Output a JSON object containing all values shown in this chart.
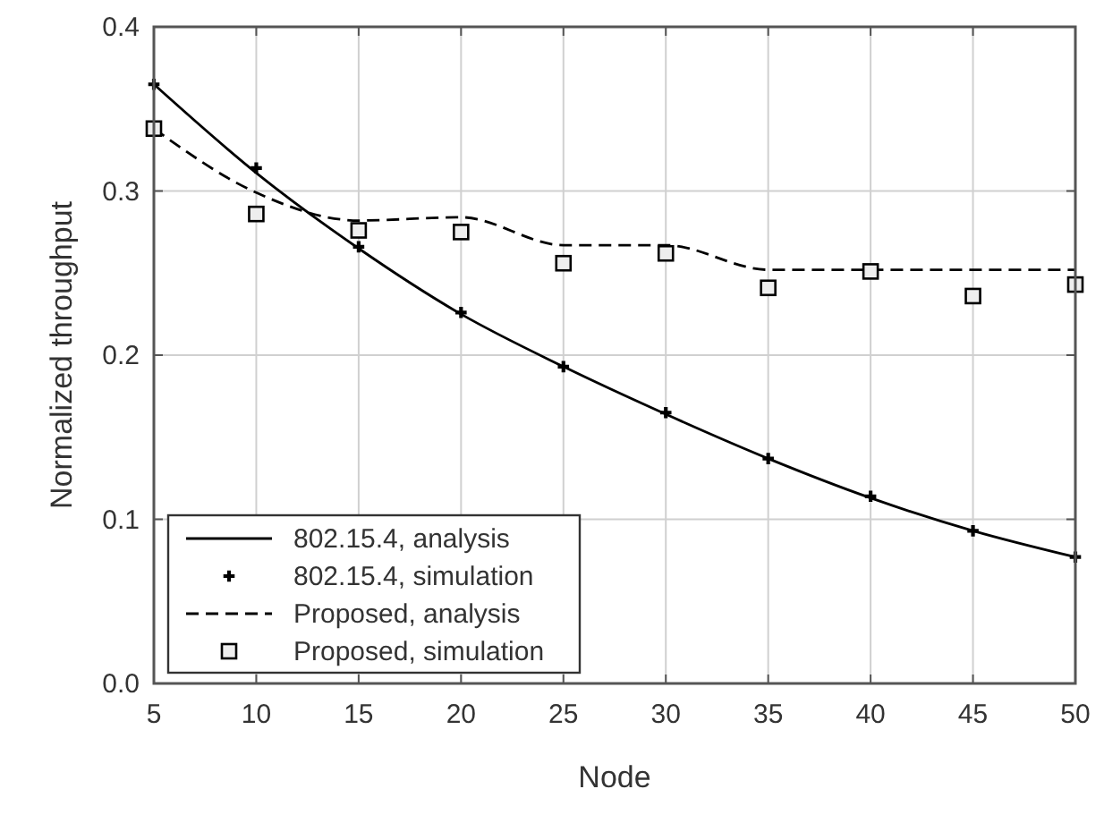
{
  "chart_data": {
    "type": "line",
    "xlabel": "Node",
    "ylabel": "Normalized throughput",
    "x": [
      5,
      10,
      15,
      20,
      25,
      30,
      35,
      40,
      45,
      50
    ],
    "xlim": [
      5,
      50
    ],
    "xticks": [
      5,
      10,
      15,
      20,
      25,
      30,
      35,
      40,
      45,
      50
    ],
    "ylim": [
      0,
      0.4
    ],
    "yticks": [
      {
        "value": 0,
        "label": "0.0"
      },
      0.1,
      0.2,
      0.3,
      0.4
    ],
    "grid": true,
    "legend": "bottom left",
    "series": [
      {
        "name": "802.15.4, analysis",
        "type": "line",
        "color": "#000000",
        "line_style": "solid",
        "marker": "none",
        "values": [
          0.365,
          0.311,
          0.265,
          0.225,
          0.193,
          0.164,
          0.137,
          0.113,
          0.093,
          0.077
        ]
      },
      {
        "name": "802.15.4, simulation",
        "type": "scatter",
        "color": "#000000",
        "marker": "cross",
        "values": [
          0.365,
          0.314,
          0.266,
          0.226,
          0.193,
          0.165,
          0.137,
          0.114,
          0.093,
          0.077
        ]
      },
      {
        "name": "Proposed, analysis",
        "type": "line",
        "color": "#000000",
        "line_style": "dashed",
        "marker": "none",
        "values": [
          0.338,
          0.299,
          0.282,
          0.284,
          0.267,
          0.267,
          0.252,
          0.252,
          0.252,
          0.252
        ]
      },
      {
        "name": "Proposed, simulation",
        "type": "scatter",
        "color": "#000000",
        "marker": "square",
        "values": [
          0.338,
          0.286,
          0.276,
          0.275,
          0.256,
          0.262,
          0.241,
          0.251,
          0.236,
          0.243
        ]
      }
    ]
  }
}
